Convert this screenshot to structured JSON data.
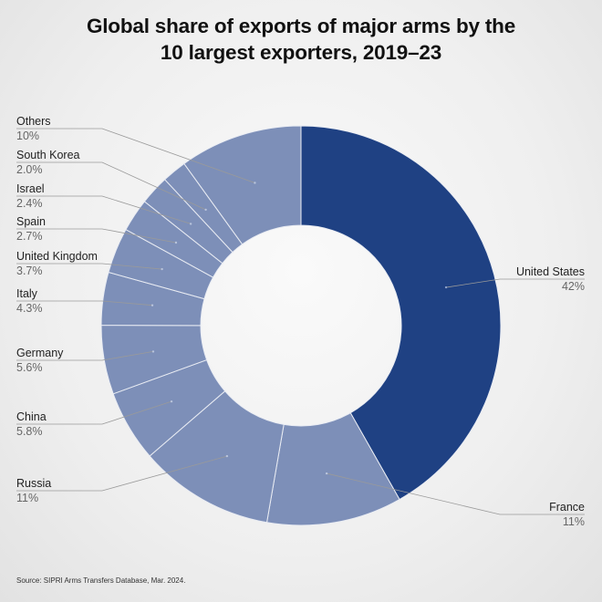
{
  "title": {
    "line1": "Global share of exports of major arms by the",
    "line2": "10 largest exporters, 2019–23"
  },
  "source": "Source: SIPRI Arms Transfers Database, Mar. 2024.",
  "colors": {
    "dark_blue": "#1f4183",
    "light_blue": "#7d8fb8",
    "divider": "#e9ecf3",
    "leader": "#9a9a9a"
  },
  "chart_data": {
    "type": "pie",
    "variant": "donut",
    "unit": "%",
    "slices": [
      {
        "label": "United States",
        "value_label": "42%",
        "value": 42
      },
      {
        "label": "France",
        "value_label": "11%",
        "value": 11
      },
      {
        "label": "Russia",
        "value_label": "11%",
        "value": 11
      },
      {
        "label": "China",
        "value_label": "5.8%",
        "value": 5.8
      },
      {
        "label": "Germany",
        "value_label": "5.6%",
        "value": 5.6
      },
      {
        "label": "Italy",
        "value_label": "4.3%",
        "value": 4.3
      },
      {
        "label": "United Kingdom",
        "value_label": "3.7%",
        "value": 3.7
      },
      {
        "label": "Spain",
        "value_label": "2.7%",
        "value": 2.7
      },
      {
        "label": "Israel",
        "value_label": "2.4%",
        "value": 2.4
      },
      {
        "label": "South Korea",
        "value_label": "2.0%",
        "value": 2.0
      },
      {
        "label": "Others",
        "value_label": "10%",
        "value": 10
      }
    ]
  }
}
